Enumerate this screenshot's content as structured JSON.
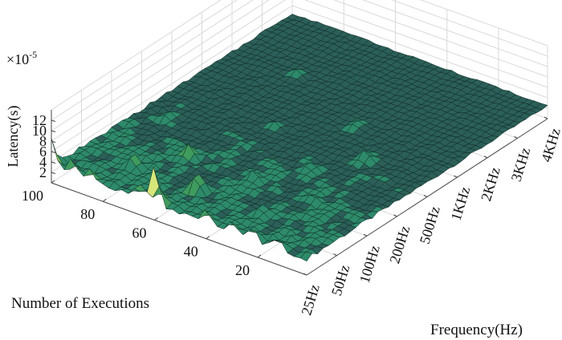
{
  "chart_data": {
    "type": "surface3d",
    "z_multiplier": "×10",
    "z_exponent": "-5",
    "zlabel": "Latency(s)",
    "ylabel": "Number of Executions",
    "xlabel": "Frequency(Hz)",
    "x_ticks": [
      "25Hz",
      "50Hz",
      "100Hz",
      "200Hz",
      "500Hz",
      "1KHz",
      "2KHz",
      "3KHz",
      "4KHz"
    ],
    "y_ticks": [
      "20",
      "40",
      "60",
      "80",
      "100"
    ],
    "z_ticks": [
      "2",
      "4",
      "6",
      "8",
      "10",
      "12"
    ],
    "y_range": [
      1,
      100
    ],
    "zlim": [
      0,
      14
    ],
    "base_latency": 2.5,
    "spikes": [
      {
        "x": "25Hz",
        "y": 100,
        "z": 8.5
      },
      {
        "x": "25Hz",
        "y": 92,
        "z": 6.5
      },
      {
        "x": "25Hz",
        "y": 85,
        "z": 5.5
      },
      {
        "x": "25Hz",
        "y": 66,
        "z": 6.5
      },
      {
        "x": "25Hz",
        "y": 60,
        "z": 11.0
      },
      {
        "x": "25Hz",
        "y": 40,
        "z": 6.0
      },
      {
        "x": "25Hz",
        "y": 30,
        "z": 5.5
      },
      {
        "x": "25Hz",
        "y": 22,
        "z": 6.0
      },
      {
        "x": "25Hz",
        "y": 12,
        "z": 5.5
      },
      {
        "x": "50Hz",
        "y": 80,
        "z": 6.0
      },
      {
        "x": "50Hz",
        "y": 55,
        "z": 7.0
      },
      {
        "x": "50Hz",
        "y": 30,
        "z": 5.0
      },
      {
        "x": "100Hz",
        "y": 70,
        "z": 5.5
      },
      {
        "x": "100Hz",
        "y": 45,
        "z": 5.0
      },
      {
        "x": "100Hz",
        "y": 22,
        "z": 4.5
      },
      {
        "x": "200Hz",
        "y": 90,
        "z": 4.5
      },
      {
        "x": "200Hz",
        "y": 35,
        "z": 4.5
      },
      {
        "x": "500Hz",
        "y": 60,
        "z": 4.0
      },
      {
        "x": "500Hz",
        "y": 25,
        "z": 5.0
      },
      {
        "x": "1KHz",
        "y": 40,
        "z": 4.0
      },
      {
        "x": "2KHz",
        "y": 75,
        "z": 3.8
      }
    ],
    "colormap": [
      "#2b5f58",
      "#2d8a6a",
      "#3f9b5e",
      "#8cc35a",
      "#d6e67a"
    ]
  }
}
